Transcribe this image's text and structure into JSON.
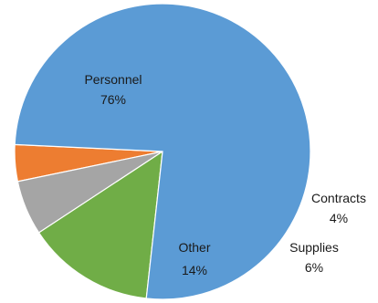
{
  "chart_data": {
    "type": "pie",
    "start_direction": "clockwise from vertical-below-center",
    "slices": [
      {
        "name": "Contracts",
        "value": 4,
        "label": "4%",
        "color": "#ED7D31"
      },
      {
        "name": "Supplies",
        "value": 6,
        "label": "6%",
        "color": "#A5A5A5"
      },
      {
        "name": "Other",
        "value": 14,
        "label": "14%",
        "color": "#70AD47"
      },
      {
        "name": "Personnel",
        "value": 76,
        "label": "76%",
        "color": "#5B9BD5"
      }
    ]
  }
}
